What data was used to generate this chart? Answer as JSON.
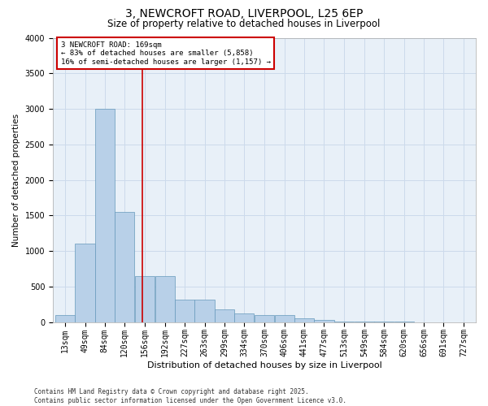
{
  "title_line1": "3, NEWCROFT ROAD, LIVERPOOL, L25 6EP",
  "title_line2": "Size of property relative to detached houses in Liverpool",
  "xlabel": "Distribution of detached houses by size in Liverpool",
  "ylabel": "Number of detached properties",
  "bins": [
    "13sqm",
    "49sqm",
    "84sqm",
    "120sqm",
    "156sqm",
    "192sqm",
    "227sqm",
    "263sqm",
    "299sqm",
    "334sqm",
    "370sqm",
    "406sqm",
    "441sqm",
    "477sqm",
    "513sqm",
    "549sqm",
    "584sqm",
    "620sqm",
    "656sqm",
    "691sqm",
    "727sqm"
  ],
  "bin_left_edges": [
    13,
    49,
    84,
    120,
    156,
    192,
    227,
    263,
    299,
    334,
    370,
    406,
    441,
    477,
    513,
    549,
    584,
    620,
    656,
    691,
    727
  ],
  "bin_width": 36,
  "bar_values": [
    100,
    1100,
    3000,
    1550,
    650,
    650,
    320,
    320,
    180,
    120,
    100,
    100,
    50,
    30,
    5,
    2,
    1,
    1,
    0,
    0,
    0
  ],
  "bar_color": "#b8d0e8",
  "bar_edge_color": "#6699bb",
  "grid_color": "#ccdaeb",
  "bg_color": "#e8f0f8",
  "red_line_x": 169,
  "annotation_title": "3 NEWCROFT ROAD: 169sqm",
  "annotation_line2": "← 83% of detached houses are smaller (5,858)",
  "annotation_line3": "16% of semi-detached houses are larger (1,157) →",
  "annotation_box_facecolor": "#ffffff",
  "annotation_box_edgecolor": "#cc0000",
  "red_line_color": "#cc0000",
  "ylim": [
    0,
    4000
  ],
  "yticks": [
    0,
    500,
    1000,
    1500,
    2000,
    2500,
    3000,
    3500,
    4000
  ],
  "title_fontsize": 10,
  "subtitle_fontsize": 8.5,
  "ylabel_fontsize": 7.5,
  "xlabel_fontsize": 8,
  "tick_fontsize": 7,
  "annot_fontsize": 6.5,
  "footer_fontsize": 5.5,
  "footer_line1": "Contains HM Land Registry data © Crown copyright and database right 2025.",
  "footer_line2": "Contains public sector information licensed under the Open Government Licence v3.0."
}
